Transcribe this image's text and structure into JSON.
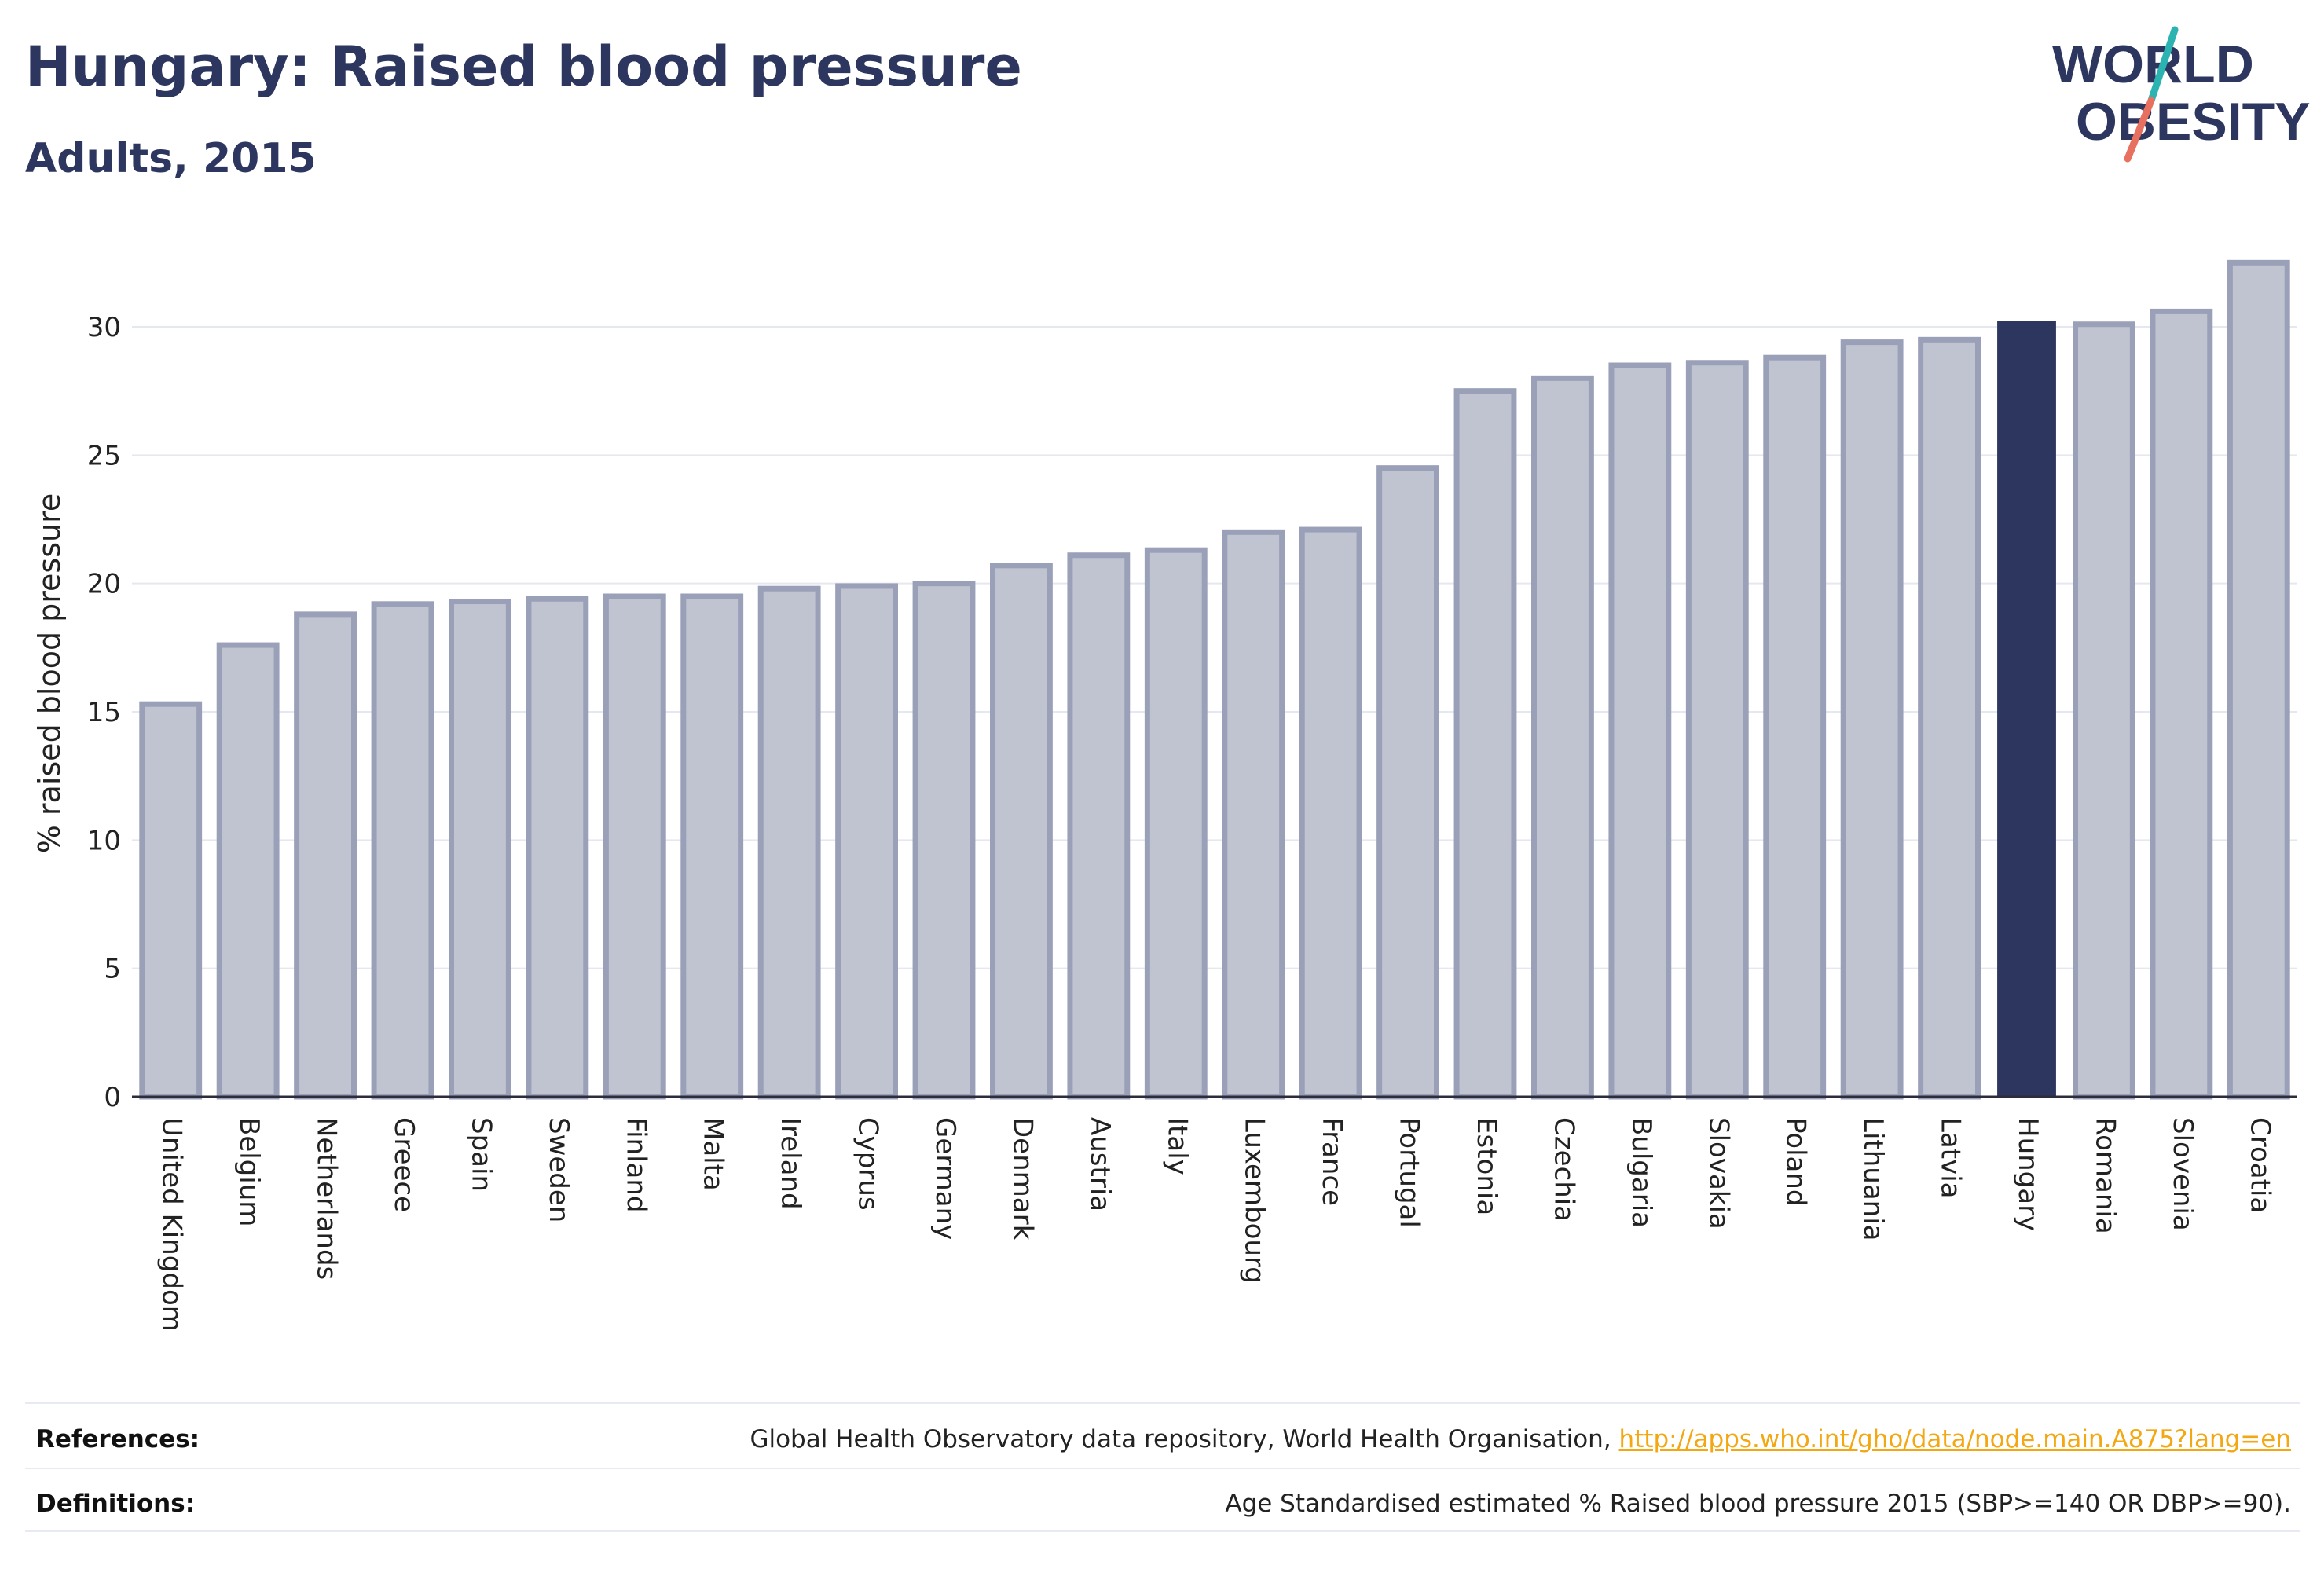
{
  "header": {
    "title": "Hungary: Raised blood pressure",
    "subtitle": "Adults, 2015"
  },
  "logo": {
    "line1": "WORLD",
    "line2": "OBESITY",
    "colors": {
      "text": "#2c365e",
      "slash_teal": "#2bb3b1",
      "slash_coral": "#e8705e"
    }
  },
  "colors": {
    "bar_fill": "#c0c4d1",
    "bar_stroke": "#9aa0b8",
    "highlight": "#2c365e",
    "grid": "#e6e8ef",
    "axis_text": "#222222"
  },
  "chart_data": {
    "type": "bar",
    "categories": [
      "United Kingdom",
      "Belgium",
      "Netherlands",
      "Greece",
      "Spain",
      "Sweden",
      "Finland",
      "Malta",
      "Ireland",
      "Cyprus",
      "Germany",
      "Denmark",
      "Austria",
      "Italy",
      "Luxembourg",
      "France",
      "Portugal",
      "Estonia",
      "Czechia",
      "Bulgaria",
      "Slovakia",
      "Poland",
      "Lithuania",
      "Latvia",
      "Hungary",
      "Romania",
      "Slovenia",
      "Croatia"
    ],
    "values": [
      15.3,
      17.6,
      18.8,
      19.2,
      19.3,
      19.4,
      19.5,
      19.5,
      19.8,
      19.9,
      20.0,
      20.7,
      21.1,
      21.3,
      22.0,
      22.1,
      24.5,
      27.5,
      28.0,
      28.5,
      28.6,
      28.8,
      29.4,
      29.5,
      30.2,
      30.1,
      30.6,
      32.5
    ],
    "highlight": "Hungary",
    "ylabel": "% raised blood pressure",
    "ylim": [
      0,
      33
    ],
    "yticks": [
      0,
      5,
      10,
      15,
      20,
      25,
      30
    ],
    "grid": true
  },
  "footer": {
    "references_label": "References:",
    "references_text": "Global Health Observatory data repository, World Health Organisation, ",
    "references_link": "http://apps.who.int/gho/data/node.main.A875?lang=en",
    "definitions_label": "Definitions:",
    "definitions_text": "Age Standardised estimated % Raised blood pressure 2015 (SBP>=140 OR DBP>=90)."
  }
}
